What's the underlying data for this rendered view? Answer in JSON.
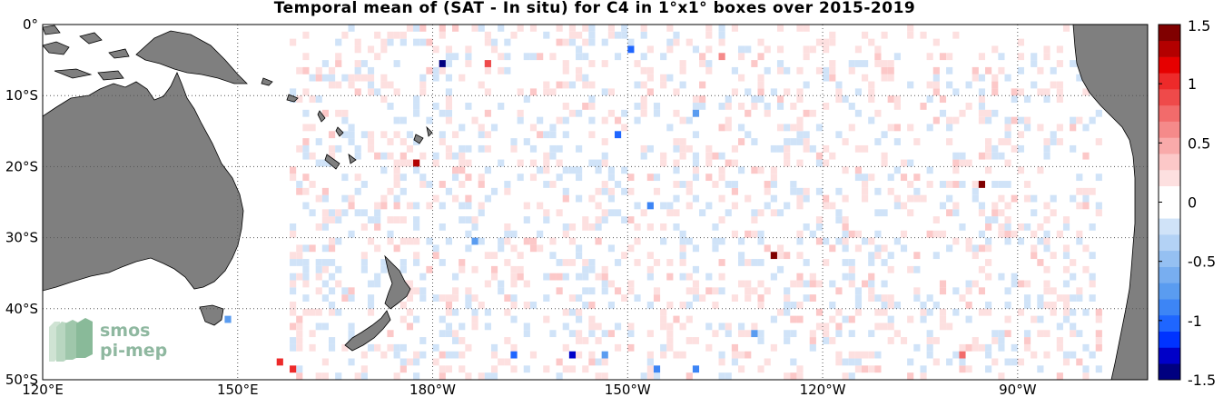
{
  "title": "Temporal mean of (SAT - In situ) for C4 in 1°x1° boxes over 2015-2019",
  "logo": {
    "line1": "smos",
    "line2": "pi-mep"
  },
  "colors": {
    "land": "#7f7f7f",
    "ocean": "#ffffff",
    "coast": "#000000",
    "grid": "#555555"
  },
  "chart_data": {
    "type": "heatmap",
    "title": "Temporal mean of (SAT - In situ) for C4 in 1°x1° boxes over 2015-2019",
    "x_ticks": [
      {
        "lon": 120,
        "label": "120°E"
      },
      {
        "lon": 150,
        "label": "150°E"
      },
      {
        "lon": 180,
        "label": "180°W"
      },
      {
        "lon": 210,
        "label": "150°W"
      },
      {
        "lon": 240,
        "label": "120°W"
      },
      {
        "lon": 270,
        "label": "90°W"
      }
    ],
    "y_ticks": [
      {
        "lat": 0,
        "label": "0°"
      },
      {
        "lat": -10,
        "label": "10°S"
      },
      {
        "lat": -20,
        "label": "20°S"
      },
      {
        "lat": -30,
        "label": "30°S"
      },
      {
        "lat": -40,
        "label": "40°S"
      },
      {
        "lat": -50,
        "label": "50°S"
      }
    ],
    "lon_range": [
      120,
      290
    ],
    "lat_range": [
      -50,
      0
    ],
    "grid": true,
    "colorbar": {
      "range": [
        -1.5,
        1.5
      ],
      "ticks": [
        {
          "v": 1.5,
          "label": "1.5"
        },
        {
          "v": 1,
          "label": "1"
        },
        {
          "v": 0.5,
          "label": "0.5"
        },
        {
          "v": 0,
          "label": "0"
        },
        {
          "v": -0.5,
          "label": "-0.5"
        },
        {
          "v": -1,
          "label": "-1"
        },
        {
          "v": -1.5,
          "label": "-1.5"
        }
      ],
      "palette": [
        "#000080",
        "#0000c8",
        "#0033ff",
        "#1f66ff",
        "#3d85f5",
        "#5a9cf0",
        "#78aef0",
        "#95c0f2",
        "#b3d2f5",
        "#d0e3f8",
        "#ffffff",
        "#ffffff",
        "#fde0e0",
        "#fcc8c8",
        "#f9aaaa",
        "#f58a8a",
        "#f26b6b",
        "#ef4a4a",
        "#ed2a2a",
        "#e60000",
        "#b30000",
        "#800000"
      ]
    },
    "notable_cells": [
      {
        "lon": 181.5,
        "lat": -5.5,
        "value": -1.5
      },
      {
        "lon": 188.5,
        "lat": -5.5,
        "value": 0.9
      },
      {
        "lon": 177.5,
        "lat": -19.5,
        "value": 1.3
      },
      {
        "lon": 148.5,
        "lat": -41.5,
        "value": -0.8
      },
      {
        "lon": 232.5,
        "lat": -32.5,
        "value": 1.4
      },
      {
        "lon": 264.5,
        "lat": -22.5,
        "value": 1.5
      },
      {
        "lon": 210.5,
        "lat": -3.5,
        "value": -1.0
      },
      {
        "lon": 224.5,
        "lat": -4.5,
        "value": 0.6
      },
      {
        "lon": 220.5,
        "lat": -12.5,
        "value": -0.8
      },
      {
        "lon": 208.5,
        "lat": -15.5,
        "value": -1.0
      },
      {
        "lon": 213.5,
        "lat": -25.5,
        "value": -0.9
      },
      {
        "lon": 186.5,
        "lat": -30.5,
        "value": -0.8
      },
      {
        "lon": 201.5,
        "lat": -46.5,
        "value": -1.3
      },
      {
        "lon": 206.5,
        "lat": -46.5,
        "value": -0.8
      },
      {
        "lon": 192.5,
        "lat": -46.5,
        "value": -1.0
      },
      {
        "lon": 156.5,
        "lat": -47.5,
        "value": 1.0
      },
      {
        "lon": 158.5,
        "lat": -48.5,
        "value": 1.0
      },
      {
        "lon": 220.5,
        "lat": -48.5,
        "value": -0.9
      },
      {
        "lon": 214.5,
        "lat": -48.5,
        "value": -0.9
      },
      {
        "lon": 261.5,
        "lat": -46.5,
        "value": 0.8
      },
      {
        "lon": 229.5,
        "lat": -43.5,
        "value": -0.7
      }
    ]
  }
}
